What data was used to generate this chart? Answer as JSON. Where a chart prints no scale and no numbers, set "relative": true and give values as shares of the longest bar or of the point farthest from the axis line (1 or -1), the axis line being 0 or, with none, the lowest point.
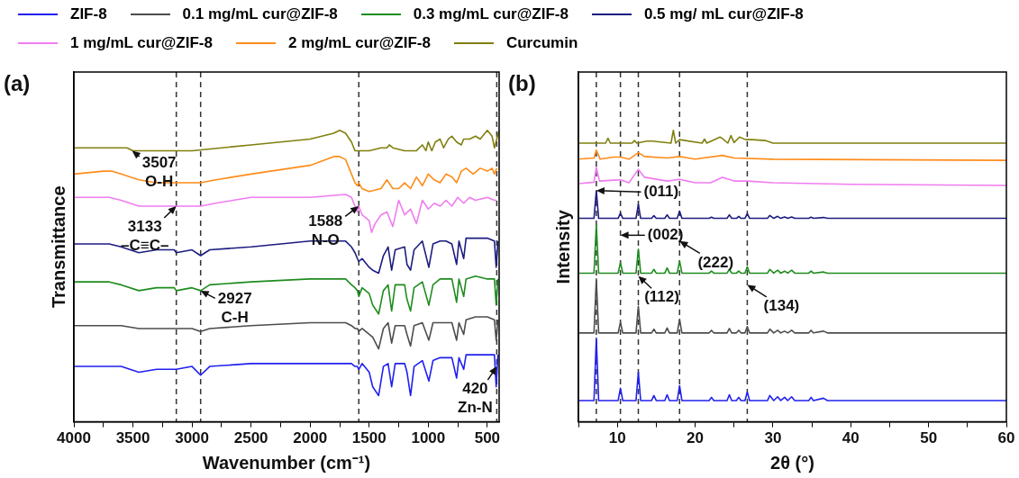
{
  "chart_data": [
    {
      "type": "line",
      "relative": true,
      "xlabel": "Wavenumber (cm⁻¹)",
      "ylabel": "Transmittance",
      "xlim": [
        4000,
        400
      ],
      "xticks": [
        4000,
        {
          "value": 3750,
          "label": null
        },
        3500,
        {
          "value": 3250,
          "label": null
        },
        3000,
        {
          "value": 2750,
          "label": null
        },
        2500,
        {
          "value": 2250,
          "label": null
        },
        2000,
        {
          "value": 1750,
          "label": null
        },
        1500,
        {
          "value": 1250,
          "label": null
        },
        1000,
        {
          "value": 750,
          "label": null
        },
        500
      ],
      "legend": "top",
      "series": [
        {
          "name": "ZIF-8",
          "color": "#2020f0",
          "x": [
            4000,
            3700,
            3600,
            3450,
            3300,
            3150,
            3133,
            3000,
            2927,
            2850,
            2500,
            2000,
            1700,
            1650,
            1620,
            1600,
            1588,
            1560,
            1500,
            1470,
            1420,
            1380,
            1340,
            1310,
            1280,
            1200,
            1180,
            1150,
            1120,
            1050,
            995,
            960,
            900,
            850,
            800,
            760,
            740,
            700,
            680,
            600,
            500,
            440,
            425,
            410
          ],
          "values": [
            0.19,
            0.19,
            0.19,
            0.17,
            0.18,
            0.18,
            0.18,
            0.19,
            0.16,
            0.19,
            0.2,
            0.2,
            0.2,
            0.2,
            0.19,
            0.19,
            0.18,
            0.2,
            0.17,
            0.12,
            0.09,
            0.19,
            0.2,
            0.12,
            0.2,
            0.2,
            0.17,
            0.09,
            0.19,
            0.21,
            0.14,
            0.21,
            0.22,
            0.22,
            0.22,
            0.15,
            0.22,
            0.18,
            0.23,
            0.23,
            0.23,
            0.23,
            0.12,
            0.23
          ]
        },
        {
          "name": "0.1 mg/mL cur@ZIF-8",
          "color": "#4d4d4d",
          "x": [
            4000,
            3700,
            3600,
            3450,
            3300,
            3150,
            3133,
            3000,
            2927,
            2850,
            2500,
            2000,
            1700,
            1650,
            1620,
            1600,
            1588,
            1560,
            1500,
            1470,
            1420,
            1380,
            1340,
            1310,
            1280,
            1200,
            1180,
            1150,
            1120,
            1050,
            995,
            960,
            900,
            850,
            800,
            760,
            740,
            700,
            680,
            600,
            500,
            440,
            425,
            410
          ],
          "values": [
            0.33,
            0.33,
            0.33,
            0.32,
            0.32,
            0.32,
            0.32,
            0.32,
            0.31,
            0.32,
            0.33,
            0.34,
            0.34,
            0.33,
            0.32,
            0.32,
            0.31,
            0.32,
            0.3,
            0.29,
            0.25,
            0.32,
            0.34,
            0.27,
            0.33,
            0.33,
            0.3,
            0.26,
            0.33,
            0.34,
            0.28,
            0.34,
            0.34,
            0.34,
            0.34,
            0.28,
            0.34,
            0.3,
            0.35,
            0.36,
            0.36,
            0.35,
            0.28,
            0.35
          ]
        },
        {
          "name": "0.3 mg/mL cur@ZIF-8",
          "color": "#1e8c1e",
          "x": [
            4000,
            3700,
            3600,
            3450,
            3300,
            3150,
            3133,
            3000,
            2927,
            2850,
            2500,
            2000,
            1700,
            1650,
            1620,
            1600,
            1588,
            1560,
            1500,
            1470,
            1420,
            1380,
            1340,
            1310,
            1280,
            1200,
            1180,
            1150,
            1120,
            1050,
            995,
            960,
            900,
            850,
            800,
            760,
            740,
            700,
            680,
            600,
            500,
            440,
            425,
            410
          ],
          "values": [
            0.48,
            0.48,
            0.47,
            0.45,
            0.46,
            0.46,
            0.45,
            0.46,
            0.45,
            0.47,
            0.48,
            0.49,
            0.49,
            0.47,
            0.46,
            0.45,
            0.43,
            0.46,
            0.44,
            0.4,
            0.37,
            0.45,
            0.47,
            0.38,
            0.47,
            0.47,
            0.42,
            0.38,
            0.46,
            0.48,
            0.4,
            0.47,
            0.49,
            0.49,
            0.49,
            0.41,
            0.49,
            0.43,
            0.49,
            0.5,
            0.49,
            0.49,
            0.4,
            0.49
          ]
        },
        {
          "name": "0.5 mg/ mL cur@ZIF-8",
          "color": "#1c1c80",
          "x": [
            4000,
            3700,
            3600,
            3450,
            3300,
            3150,
            3133,
            3000,
            2927,
            2850,
            2500,
            2000,
            1700,
            1650,
            1620,
            1600,
            1588,
            1560,
            1500,
            1470,
            1420,
            1380,
            1340,
            1310,
            1280,
            1200,
            1180,
            1150,
            1120,
            1050,
            995,
            960,
            900,
            850,
            800,
            760,
            740,
            700,
            680,
            600,
            500,
            440,
            425,
            410
          ],
          "values": [
            0.61,
            0.61,
            0.6,
            0.58,
            0.59,
            0.59,
            0.58,
            0.59,
            0.57,
            0.59,
            0.6,
            0.62,
            0.62,
            0.6,
            0.58,
            0.56,
            0.55,
            0.56,
            0.53,
            0.52,
            0.51,
            0.57,
            0.6,
            0.52,
            0.59,
            0.6,
            0.54,
            0.52,
            0.59,
            0.62,
            0.53,
            0.61,
            0.62,
            0.62,
            0.61,
            0.54,
            0.62,
            0.56,
            0.63,
            0.63,
            0.63,
            0.62,
            0.53,
            0.62
          ]
        },
        {
          "name": "1 mg/mL cur@ZIF-8",
          "color": "#f07cf0",
          "x": [
            4000,
            3700,
            3600,
            3450,
            3300,
            3133,
            2927,
            2800,
            2500,
            2000,
            1700,
            1650,
            1620,
            1600,
            1588,
            1560,
            1500,
            1480,
            1450,
            1400,
            1350,
            1300,
            1250,
            1200,
            1150,
            1100,
            1050,
            1000,
            950,
            900,
            850,
            800,
            750,
            700,
            650,
            600,
            500,
            440,
            420
          ],
          "values": [
            0.77,
            0.77,
            0.76,
            0.74,
            0.74,
            0.74,
            0.74,
            0.75,
            0.77,
            0.77,
            0.78,
            0.77,
            0.74,
            0.72,
            0.74,
            0.71,
            0.69,
            0.65,
            0.68,
            0.71,
            0.72,
            0.67,
            0.76,
            0.71,
            0.73,
            0.68,
            0.76,
            0.73,
            0.75,
            0.74,
            0.76,
            0.74,
            0.77,
            0.75,
            0.77,
            0.76,
            0.77,
            0.76,
            0.76
          ]
        },
        {
          "name": "2 mg/mL cur@ZIF-8",
          "color": "#ff8c1a",
          "x": [
            4000,
            3750,
            3680,
            3600,
            3450,
            3300,
            3133,
            3000,
            2927,
            2800,
            2500,
            2000,
            1800,
            1750,
            1700,
            1650,
            1620,
            1600,
            1588,
            1560,
            1500,
            1400,
            1350,
            1300,
            1250,
            1200,
            1150,
            1100,
            1050,
            1000,
            950,
            900,
            850,
            800,
            760,
            720,
            680,
            620,
            560,
            500,
            460,
            440,
            420
          ],
          "values": [
            0.85,
            0.86,
            0.86,
            0.85,
            0.83,
            0.82,
            0.82,
            0.82,
            0.82,
            0.83,
            0.85,
            0.88,
            0.91,
            0.91,
            0.9,
            0.85,
            0.82,
            0.81,
            0.82,
            0.8,
            0.79,
            0.8,
            0.83,
            0.8,
            0.8,
            0.82,
            0.8,
            0.84,
            0.81,
            0.85,
            0.83,
            0.82,
            0.85,
            0.84,
            0.82,
            0.86,
            0.87,
            0.85,
            0.87,
            0.86,
            0.87,
            0.85,
            0.87
          ]
        },
        {
          "name": "Curcumin",
          "color": "#808010",
          "x": [
            4000,
            3550,
            3500,
            3000,
            2500,
            2000,
            1800,
            1750,
            1700,
            1650,
            1620,
            1600,
            1500,
            1400,
            1350,
            1330,
            1300,
            1200,
            1100,
            1050,
            1020,
            1000,
            970,
            940,
            900,
            870,
            830,
            800,
            760,
            720,
            700,
            650,
            600,
            560,
            500,
            460,
            440,
            420,
            400
          ],
          "values": [
            0.94,
            0.94,
            0.93,
            0.93,
            0.95,
            0.97,
            0.99,
            1.0,
            0.99,
            0.96,
            0.93,
            0.93,
            0.93,
            0.94,
            0.94,
            0.95,
            0.94,
            0.93,
            0.93,
            0.95,
            0.93,
            0.96,
            0.93,
            0.96,
            0.97,
            0.94,
            0.97,
            0.98,
            0.96,
            0.95,
            0.97,
            0.97,
            0.98,
            0.97,
            1.0,
            0.98,
            0.94,
            0.97,
            1.0
          ]
        }
      ],
      "ref_lines": [
        {
          "axis": "x",
          "value": 3133,
          "line_style": "dashed",
          "color": "#333333"
        },
        {
          "axis": "x",
          "value": 2927,
          "line_style": "dashed",
          "color": "#333333"
        },
        {
          "axis": "x",
          "value": 1588,
          "line_style": "dashed",
          "color": "#333333"
        },
        {
          "axis": "x",
          "value": 420,
          "line_style": "dashed",
          "color": "#333333"
        }
      ],
      "annotations": [
        "(a)",
        {
          "text": "3507\nO-H",
          "x": 3507,
          "y": 0.93
        },
        {
          "text": "3133\n–C≡C–",
          "x": 3133,
          "y": 0.74
        },
        {
          "text": "1588\nN-O",
          "x": 1588,
          "y": 0.74
        },
        {
          "text": "2927\nC-H",
          "x": 2927,
          "y": 0.45
        },
        {
          "text": "420\nZn-N",
          "x": 420,
          "y": 0.19
        }
      ]
    },
    {
      "type": "line",
      "relative": true,
      "xlabel": "2θ (°)",
      "ylabel": "Intensity",
      "xlim": [
        5,
        60
      ],
      "xticks": [
        {
          "value": 5,
          "label": null
        },
        10,
        {
          "value": 15,
          "label": null
        },
        20,
        {
          "value": 25,
          "label": null
        },
        30,
        {
          "value": 35,
          "label": null
        },
        40,
        {
          "value": 45,
          "label": null
        },
        50,
        {
          "value": 55,
          "label": null
        },
        60
      ],
      "series": [
        {
          "color": "#2020f0",
          "x": [
            5,
            7.0,
            7.3,
            7.6,
            10.1,
            10.4,
            10.7,
            12.4,
            12.7,
            13.0,
            14.4,
            14.7,
            15.0,
            16.1,
            16.4,
            16.7,
            17.7,
            18.0,
            18.3,
            21.8,
            22.1,
            22.4,
            24.1,
            24.4,
            24.7,
            25.3,
            25.6,
            25.9,
            26.4,
            26.7,
            27.0,
            29.3,
            29.6,
            30.1,
            30.6,
            31.0,
            31.5,
            31.9,
            32.4,
            32.8,
            34.6,
            34.9,
            35.2,
            36.5,
            37.0,
            60
          ],
          "values": [
            0.073,
            0.073,
            0.287,
            0.073,
            0.073,
            0.115,
            0.073,
            0.073,
            0.17,
            0.073,
            0.073,
            0.09,
            0.073,
            0.073,
            0.093,
            0.073,
            0.073,
            0.124,
            0.073,
            0.073,
            0.084,
            0.073,
            0.073,
            0.093,
            0.073,
            0.073,
            0.084,
            0.073,
            0.073,
            0.102,
            0.073,
            0.073,
            0.09,
            0.073,
            0.086,
            0.073,
            0.084,
            0.073,
            0.086,
            0.073,
            0.073,
            0.084,
            0.073,
            0.081,
            0.073,
            0.073
          ]
        },
        {
          "color": "#4d4d4d",
          "x": [
            5,
            7.0,
            7.3,
            7.6,
            10.1,
            10.4,
            10.7,
            12.4,
            12.7,
            13.0,
            14.4,
            14.7,
            15.0,
            16.1,
            16.4,
            16.7,
            17.7,
            18.0,
            18.3,
            21.8,
            22.1,
            22.4,
            24.1,
            24.4,
            24.7,
            25.3,
            25.6,
            25.9,
            26.4,
            26.7,
            27.0,
            29.3,
            29.6,
            30.1,
            30.6,
            31.0,
            31.5,
            31.9,
            32.4,
            32.8,
            34.6,
            34.9,
            35.2,
            36.5,
            37.0,
            60
          ],
          "values": [
            0.305,
            0.305,
            0.49,
            0.305,
            0.305,
            0.341,
            0.305,
            0.305,
            0.396,
            0.305,
            0.305,
            0.318,
            0.305,
            0.305,
            0.322,
            0.305,
            0.305,
            0.352,
            0.305,
            0.305,
            0.314,
            0.305,
            0.305,
            0.32,
            0.305,
            0.305,
            0.314,
            0.305,
            0.305,
            0.327,
            0.305,
            0.305,
            0.318,
            0.305,
            0.314,
            0.305,
            0.311,
            0.305,
            0.314,
            0.305,
            0.305,
            0.314,
            0.305,
            0.311,
            0.305,
            0.305
          ]
        },
        {
          "color": "#1e8c1e",
          "x": [
            5,
            7.0,
            7.3,
            7.6,
            10.1,
            10.4,
            10.7,
            12.4,
            12.7,
            13.0,
            14.4,
            14.7,
            15.0,
            16.1,
            16.4,
            16.7,
            17.7,
            18.0,
            18.3,
            21.8,
            22.1,
            22.4,
            24.1,
            24.4,
            24.7,
            25.3,
            25.6,
            25.9,
            26.4,
            26.7,
            27.0,
            29.3,
            29.6,
            30.1,
            30.6,
            31.0,
            31.5,
            31.9,
            32.4,
            32.8,
            34.6,
            34.9,
            35.2,
            36.5,
            37.0,
            60
          ],
          "values": [
            0.51,
            0.51,
            0.676,
            0.51,
            0.51,
            0.546,
            0.51,
            0.51,
            0.592,
            0.51,
            0.51,
            0.523,
            0.51,
            0.51,
            0.528,
            0.51,
            0.51,
            0.552,
            0.51,
            0.51,
            0.517,
            0.51,
            0.51,
            0.523,
            0.51,
            0.51,
            0.517,
            0.51,
            0.51,
            0.532,
            0.51,
            0.51,
            0.523,
            0.51,
            0.52,
            0.51,
            0.517,
            0.51,
            0.52,
            0.51,
            0.51,
            0.517,
            0.51,
            0.514,
            0.51,
            0.51
          ]
        },
        {
          "color": "#1c1c80",
          "x": [
            5,
            7.0,
            7.3,
            7.6,
            10.1,
            10.4,
            10.7,
            12.4,
            12.7,
            13.0,
            14.4,
            14.7,
            15.0,
            16.1,
            16.4,
            16.7,
            17.7,
            18.0,
            18.3,
            21.8,
            22.1,
            22.4,
            24.1,
            24.4,
            24.7,
            25.3,
            25.6,
            25.9,
            26.4,
            26.7,
            27.0,
            29.3,
            29.6,
            30.1,
            30.6,
            31.0,
            31.5,
            31.9,
            32.4,
            32.8,
            34.6,
            34.9,
            35.2,
            36.5,
            37.0,
            60
          ],
          "values": [
            0.698,
            0.698,
            0.793,
            0.698,
            0.698,
            0.716,
            0.698,
            0.698,
            0.746,
            0.698,
            0.698,
            0.707,
            0.698,
            0.698,
            0.71,
            0.698,
            0.698,
            0.723,
            0.698,
            0.698,
            0.702,
            0.698,
            0.698,
            0.71,
            0.698,
            0.698,
            0.705,
            0.698,
            0.698,
            0.714,
            0.698,
            0.698,
            0.708,
            0.698,
            0.705,
            0.698,
            0.703,
            0.698,
            0.703,
            0.698,
            0.698,
            0.702,
            0.698,
            0.701,
            0.698,
            0.698
          ]
        },
        {
          "color": "#f07cf0",
          "x": [
            5,
            7.0,
            7.3,
            7.7,
            9.5,
            10.4,
            11.5,
            12.7,
            13.5,
            16.4,
            18.0,
            20,
            22,
            23.5,
            25,
            26.7,
            30,
            40,
            60
          ],
          "values": [
            0.817,
            0.822,
            0.873,
            0.826,
            0.829,
            0.83,
            0.82,
            0.866,
            0.839,
            0.826,
            0.832,
            0.82,
            0.82,
            0.839,
            0.826,
            0.826,
            0.82,
            0.815,
            0.811
          ]
        },
        {
          "color": "#ff8c1a",
          "x": [
            5,
            7.0,
            7.3,
            7.8,
            9.5,
            10.4,
            11.5,
            12.7,
            13.5,
            16.4,
            18.0,
            20,
            23.5,
            25,
            30,
            60
          ],
          "values": [
            0.901,
            0.905,
            0.932,
            0.901,
            0.908,
            0.908,
            0.901,
            0.923,
            0.91,
            0.905,
            0.91,
            0.901,
            0.914,
            0.905,
            0.901,
            0.897
          ]
        },
        {
          "color": "#808010",
          "x": [
            5,
            8.5,
            8.8,
            9.1,
            11.9,
            12.2,
            12.5,
            13.8,
            14.5,
            16.9,
            17.2,
            17.5,
            18.0,
            20.9,
            21.2,
            21.5,
            23.2,
            23.5,
            24.2,
            24.6,
            25.0,
            25.7,
            26.5,
            27.3,
            29,
            30,
            60
          ],
          "values": [
            0.956,
            0.956,
            0.973,
            0.956,
            0.956,
            0.965,
            0.956,
            0.963,
            0.963,
            0.956,
            1.0,
            0.956,
            0.968,
            0.956,
            0.97,
            0.956,
            0.977,
            0.972,
            0.956,
            0.982,
            0.958,
            0.977,
            0.968,
            0.968,
            0.965,
            0.956,
            0.956
          ]
        }
      ],
      "ref_lines": [
        {
          "axis": "x",
          "value": 7.3,
          "line_style": "dashed",
          "color": "#333333"
        },
        {
          "axis": "x",
          "value": 10.4,
          "line_style": "dashed",
          "color": "#333333"
        },
        {
          "axis": "x",
          "value": 12.7,
          "line_style": "dashed",
          "color": "#333333"
        },
        {
          "axis": "x",
          "value": 18.0,
          "line_style": "dashed",
          "color": "#333333"
        },
        {
          "axis": "x",
          "value": 26.7,
          "line_style": "dashed",
          "color": "#333333"
        }
      ],
      "annotations": [
        "(b)",
        {
          "text": "(011)",
          "x": 7.3,
          "y": 0.793
        },
        {
          "text": "(002)",
          "x": 10.4,
          "y": 0.64
        },
        {
          "text": "(222)",
          "x": 18.0,
          "y": 0.62
        },
        {
          "text": "(112)",
          "x": 12.7,
          "y": 0.5
        },
        {
          "text": "(134)",
          "x": 26.7,
          "y": 0.47
        }
      ]
    }
  ]
}
